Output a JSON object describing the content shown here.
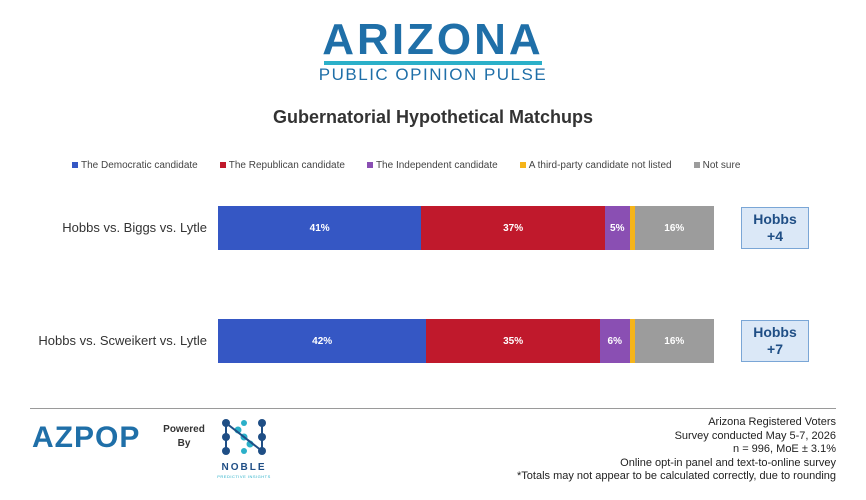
{
  "header": {
    "brand_title": "ARIZONA",
    "brand_subtitle": "PUBLIC OPINION PULSE"
  },
  "chart_data": {
    "type": "bar",
    "orientation": "horizontal",
    "stacked": true,
    "title": "Gubernatorial Hypothetical Matchups",
    "categories": [
      "Hobbs vs. Biggs vs. Lytle",
      "Hobbs vs. Scweikert vs. Lytle"
    ],
    "series": [
      {
        "name": "The Democratic candidate",
        "color": "#3557c4",
        "values": [
          41,
          42
        ],
        "labels": [
          "41%",
          "42%"
        ]
      },
      {
        "name": "The Republican candidate",
        "color": "#c0192c",
        "values": [
          37,
          35
        ],
        "labels": [
          "37%",
          "35%"
        ]
      },
      {
        "name": "The Independent candidate",
        "color": "#8a4fb3",
        "values": [
          5,
          6
        ],
        "labels": [
          "5%",
          "6%"
        ]
      },
      {
        "name": "A third-party candidate not listed",
        "color": "#f5b41a",
        "values": [
          1,
          1
        ],
        "labels": [
          "",
          ""
        ]
      },
      {
        "name": "Not sure",
        "color": "#9c9c9c",
        "values": [
          16,
          16
        ],
        "labels": [
          "16%",
          "16%"
        ]
      }
    ],
    "xlim": [
      0,
      100
    ],
    "legend_position": "top",
    "grid": false,
    "margins": [
      {
        "name": "Hobbs",
        "value": "+4"
      },
      {
        "name": "Hobbs",
        "value": "+7"
      }
    ]
  },
  "footer": {
    "logo_text": "AZPOP",
    "powered_line1": "Powered",
    "powered_line2": "By",
    "partner_name": "NOBLE",
    "partner_tagline": "PREDICTIVE INSIGHTS",
    "notes": [
      "Arizona Registered Voters",
      "Survey conducted May 5-7, 2026",
      "n = 996, MoE ± 3.1%",
      "Online opt-in panel and text-to-online survey",
      "*Totals may not appear to be calculated correctly, due to rounding"
    ]
  },
  "colors": {
    "brand_blue": "#1f6fa8",
    "brand_teal": "#2bb0c9",
    "margin_box_fill": "#dbe8f7"
  }
}
